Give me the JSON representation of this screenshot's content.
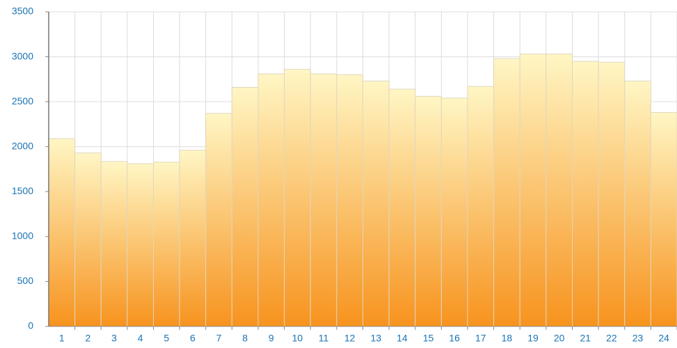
{
  "chart_data": {
    "type": "bar",
    "categories": [
      "1",
      "2",
      "3",
      "4",
      "5",
      "6",
      "7",
      "8",
      "9",
      "10",
      "11",
      "12",
      "13",
      "14",
      "15",
      "16",
      "17",
      "18",
      "19",
      "20",
      "21",
      "22",
      "23",
      "24"
    ],
    "values": [
      2090,
      1930,
      1835,
      1810,
      1827,
      1960,
      2370,
      2660,
      2810,
      2860,
      2810,
      2800,
      2730,
      2640,
      2560,
      2540,
      2670,
      2980,
      3030,
      3030,
      2950,
      2940,
      2730,
      2380
    ],
    "color": [
      "#fff6c4",
      "#f7931e"
    ],
    "ylim": [
      0,
      3500
    ],
    "yticks": [
      0,
      500,
      1000,
      1500,
      2000,
      2500,
      3000,
      3500
    ],
    "grid": true
  }
}
